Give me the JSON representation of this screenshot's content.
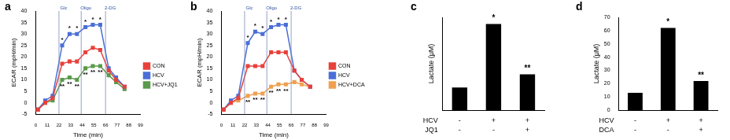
{
  "chart_data": [
    {
      "panel": "a",
      "type": "line",
      "xlabel": "Time (min)",
      "ylabel": "ECAR (mpH/min)",
      "x": [
        2,
        9,
        16,
        25,
        32,
        39,
        47,
        54,
        61,
        69,
        76,
        84
      ],
      "xlim": [
        0,
        99
      ],
      "xticks": [
        0,
        11,
        22,
        33,
        44,
        55,
        66,
        77,
        88,
        99
      ],
      "ylim": [
        -5,
        40
      ],
      "yticks": [
        -5,
        0,
        5,
        10,
        15,
        20,
        25,
        30,
        35,
        40
      ],
      "grid": false,
      "legend": "right",
      "injections": [
        {
          "x": 22,
          "label": "Glc"
        },
        {
          "x": 43,
          "label": "Oligo"
        },
        {
          "x": 66,
          "label": "2-DG"
        }
      ],
      "series": [
        {
          "name": "CON",
          "color": "#e8413c",
          "marker": "square",
          "values": [
            -3,
            0,
            2,
            17,
            18,
            18,
            22,
            24,
            23,
            14,
            10,
            7
          ]
        },
        {
          "name": "HCV",
          "color": "#4a6fd6",
          "marker": "square",
          "values": [
            -3,
            1,
            3,
            25,
            30,
            30,
            33,
            34,
            34,
            15,
            11,
            7
          ],
          "annotations": [
            null,
            null,
            null,
            "*",
            "*",
            "*",
            "*",
            "*",
            "*",
            null,
            null,
            null
          ]
        },
        {
          "name": "HCV+JQ1",
          "color": "#5b9a4c",
          "marker": "square",
          "values": [
            -3,
            0,
            1,
            10,
            11,
            10,
            15,
            16,
            16,
            12,
            9,
            6
          ],
          "annotations": [
            null,
            null,
            null,
            "**",
            "**",
            "**",
            "**",
            "**",
            "**",
            null,
            null,
            null
          ]
        }
      ]
    },
    {
      "panel": "b",
      "type": "line",
      "xlabel": "Time (min)",
      "ylabel": "ECAR (mpH/min)",
      "x": [
        2,
        9,
        16,
        25,
        32,
        39,
        47,
        54,
        61,
        69,
        76,
        84
      ],
      "xlim": [
        0,
        99
      ],
      "xticks": [
        0,
        11,
        22,
        33,
        44,
        55,
        66,
        77,
        88,
        99
      ],
      "ylim": [
        -5,
        40
      ],
      "yticks": [
        -5,
        0,
        5,
        10,
        15,
        20,
        25,
        30,
        35,
        40
      ],
      "grid": false,
      "legend": "right",
      "injections": [
        {
          "x": 22,
          "label": "Glc"
        },
        {
          "x": 43,
          "label": "Oligo"
        },
        {
          "x": 66,
          "label": "2-DG"
        }
      ],
      "series": [
        {
          "name": "CON",
          "color": "#e8413c",
          "marker": "square",
          "values": [
            -3,
            0,
            2,
            16,
            16,
            16,
            22,
            22,
            22,
            14,
            10,
            7
          ]
        },
        {
          "name": "HCV",
          "color": "#4a6fd6",
          "marker": "square",
          "values": [
            -3,
            1,
            3,
            26,
            31,
            30,
            33,
            34,
            34,
            14,
            10,
            7
          ],
          "annotations": [
            null,
            null,
            null,
            "*",
            "*",
            "*",
            "*",
            "*",
            "*",
            null,
            null,
            null
          ]
        },
        {
          "name": "HCV+DCA",
          "color": "#f0a050",
          "marker": "square",
          "values": [
            -3,
            0,
            1,
            3,
            4,
            4,
            7,
            8,
            8,
            9,
            8,
            7
          ],
          "annotations": [
            null,
            null,
            null,
            "**",
            "**",
            "**",
            "**",
            "**",
            "**",
            null,
            null,
            null
          ]
        }
      ]
    },
    {
      "panel": "c",
      "type": "bar",
      "ylabel": "Lactate (μM)",
      "categories": [
        null,
        null,
        null
      ],
      "values": [
        17,
        65,
        27
      ],
      "color": "#000000",
      "ylim": [
        0,
        70
      ],
      "yticks": [
        0,
        10,
        20,
        30,
        40,
        50,
        60,
        70
      ],
      "grid": false,
      "tick_labels": false,
      "annotations": [
        null,
        "*",
        "**"
      ],
      "conditions": [
        {
          "name": "HCV",
          "values": [
            "-",
            "+",
            "+"
          ]
        },
        {
          "name": "JQ1",
          "values": [
            "-",
            "-",
            "+"
          ]
        }
      ]
    },
    {
      "panel": "d",
      "type": "bar",
      "ylabel": "Lactate (μM)",
      "categories": [
        null,
        null,
        null
      ],
      "values": [
        13,
        62,
        22
      ],
      "color": "#000000",
      "ylim": [
        0,
        70
      ],
      "yticks": [
        0,
        10,
        20,
        30,
        40,
        50,
        60,
        70
      ],
      "grid": false,
      "tick_labels": "y",
      "annotations": [
        null,
        "*",
        "**"
      ],
      "conditions": [
        {
          "name": "HCV",
          "values": [
            "-",
            "+",
            "+"
          ]
        },
        {
          "name": "DCA",
          "values": [
            "-",
            "-",
            "+"
          ]
        }
      ]
    }
  ]
}
